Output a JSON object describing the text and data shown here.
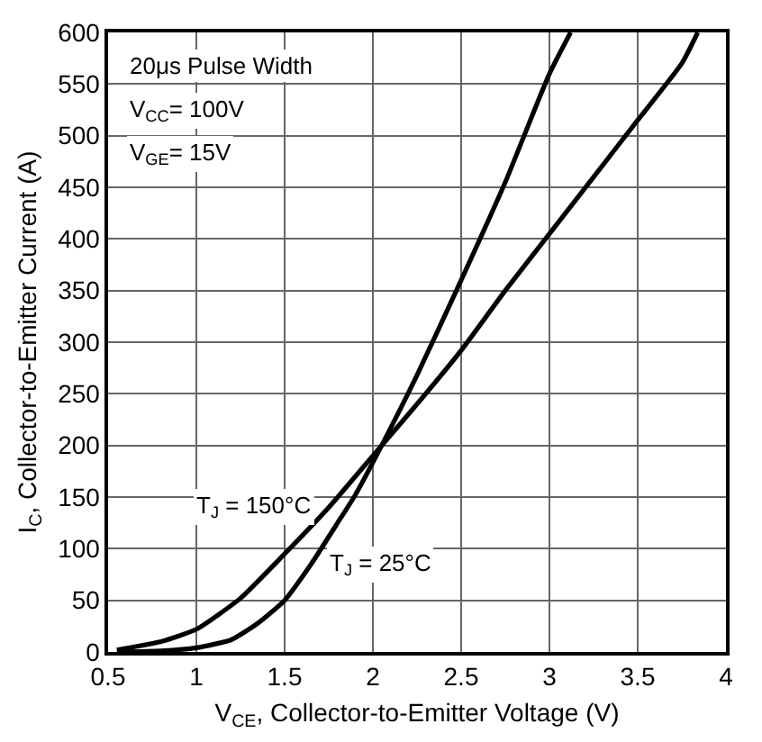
{
  "chart_data": {
    "type": "line",
    "xlabel": "V$_{CE}$, Collector-to-Emitter Voltage (V)",
    "ylabel": "I$_{C}$, Collector-to-Emitter Current (A)",
    "annotations": [
      "20μs Pulse Width",
      "V$_{CC}$= 100V",
      "V$_{GE}$= 15V"
    ],
    "series": [
      {
        "name": "T$_{J}$ = 25°C",
        "color": "#000000",
        "x": [
          0.55,
          0.8,
          1.0,
          1.2,
          1.35,
          1.5,
          1.65,
          1.8,
          1.9,
          2.05,
          2.25,
          2.5,
          2.75,
          3.0,
          3.12
        ],
        "values": [
          0,
          1,
          4,
          12,
          28,
          50,
          85,
          125,
          152,
          200,
          268,
          360,
          455,
          560,
          600
        ]
      },
      {
        "name": "T$_{J}$ = 150°C",
        "color": "#000000",
        "x": [
          0.55,
          0.8,
          1.0,
          1.25,
          1.5,
          1.75,
          2.0,
          2.25,
          2.5,
          2.75,
          3.0,
          3.25,
          3.5,
          3.75,
          3.84
        ],
        "values": [
          2,
          10,
          22,
          52,
          95,
          140,
          190,
          240,
          292,
          350,
          405,
          460,
          515,
          570,
          600
        ]
      }
    ],
    "xlim": [
      0.5,
      4
    ],
    "xticks": [
      0.5,
      1,
      1.5,
      2,
      2.5,
      3,
      3.5,
      4
    ],
    "ylim": [
      0,
      600
    ],
    "yticks": [
      0,
      50,
      100,
      150,
      200,
      250,
      300,
      350,
      400,
      450,
      500,
      550,
      600
    ],
    "grid": true,
    "legend": false,
    "line_style": "solid",
    "marker": "none"
  }
}
